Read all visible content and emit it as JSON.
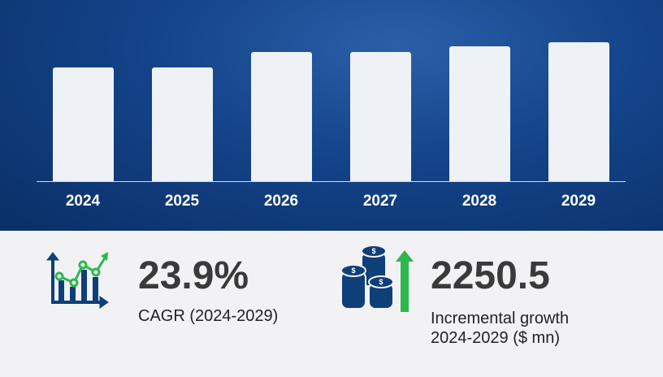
{
  "chart_data": {
    "type": "bar",
    "categories": [
      "2024",
      "2025",
      "2026",
      "2027",
      "2028",
      "2029"
    ],
    "values": [
      100,
      100,
      113.6,
      113.6,
      118.6,
      122.1
    ],
    "value_note": "relative bar heights, no axis printed",
    "title": "",
    "xlabel": "",
    "ylabel": "",
    "grid": false,
    "colors": {
      "bar": "#eef1f6",
      "background": "#134389"
    }
  },
  "stats": {
    "cagr": {
      "value": "23.9%",
      "label": "CAGR (2024-2029)",
      "icon": "chart-growth-icon"
    },
    "growth": {
      "value": "2250.5",
      "label_line1": "Incremental growth",
      "label_line2": "2024-2029 ($ mn)",
      "icon": "coins-arrow-up-icon"
    }
  },
  "colors": {
    "navy": "#0f3f78",
    "green": "#2db84e",
    "text": "#3a3a3a"
  }
}
